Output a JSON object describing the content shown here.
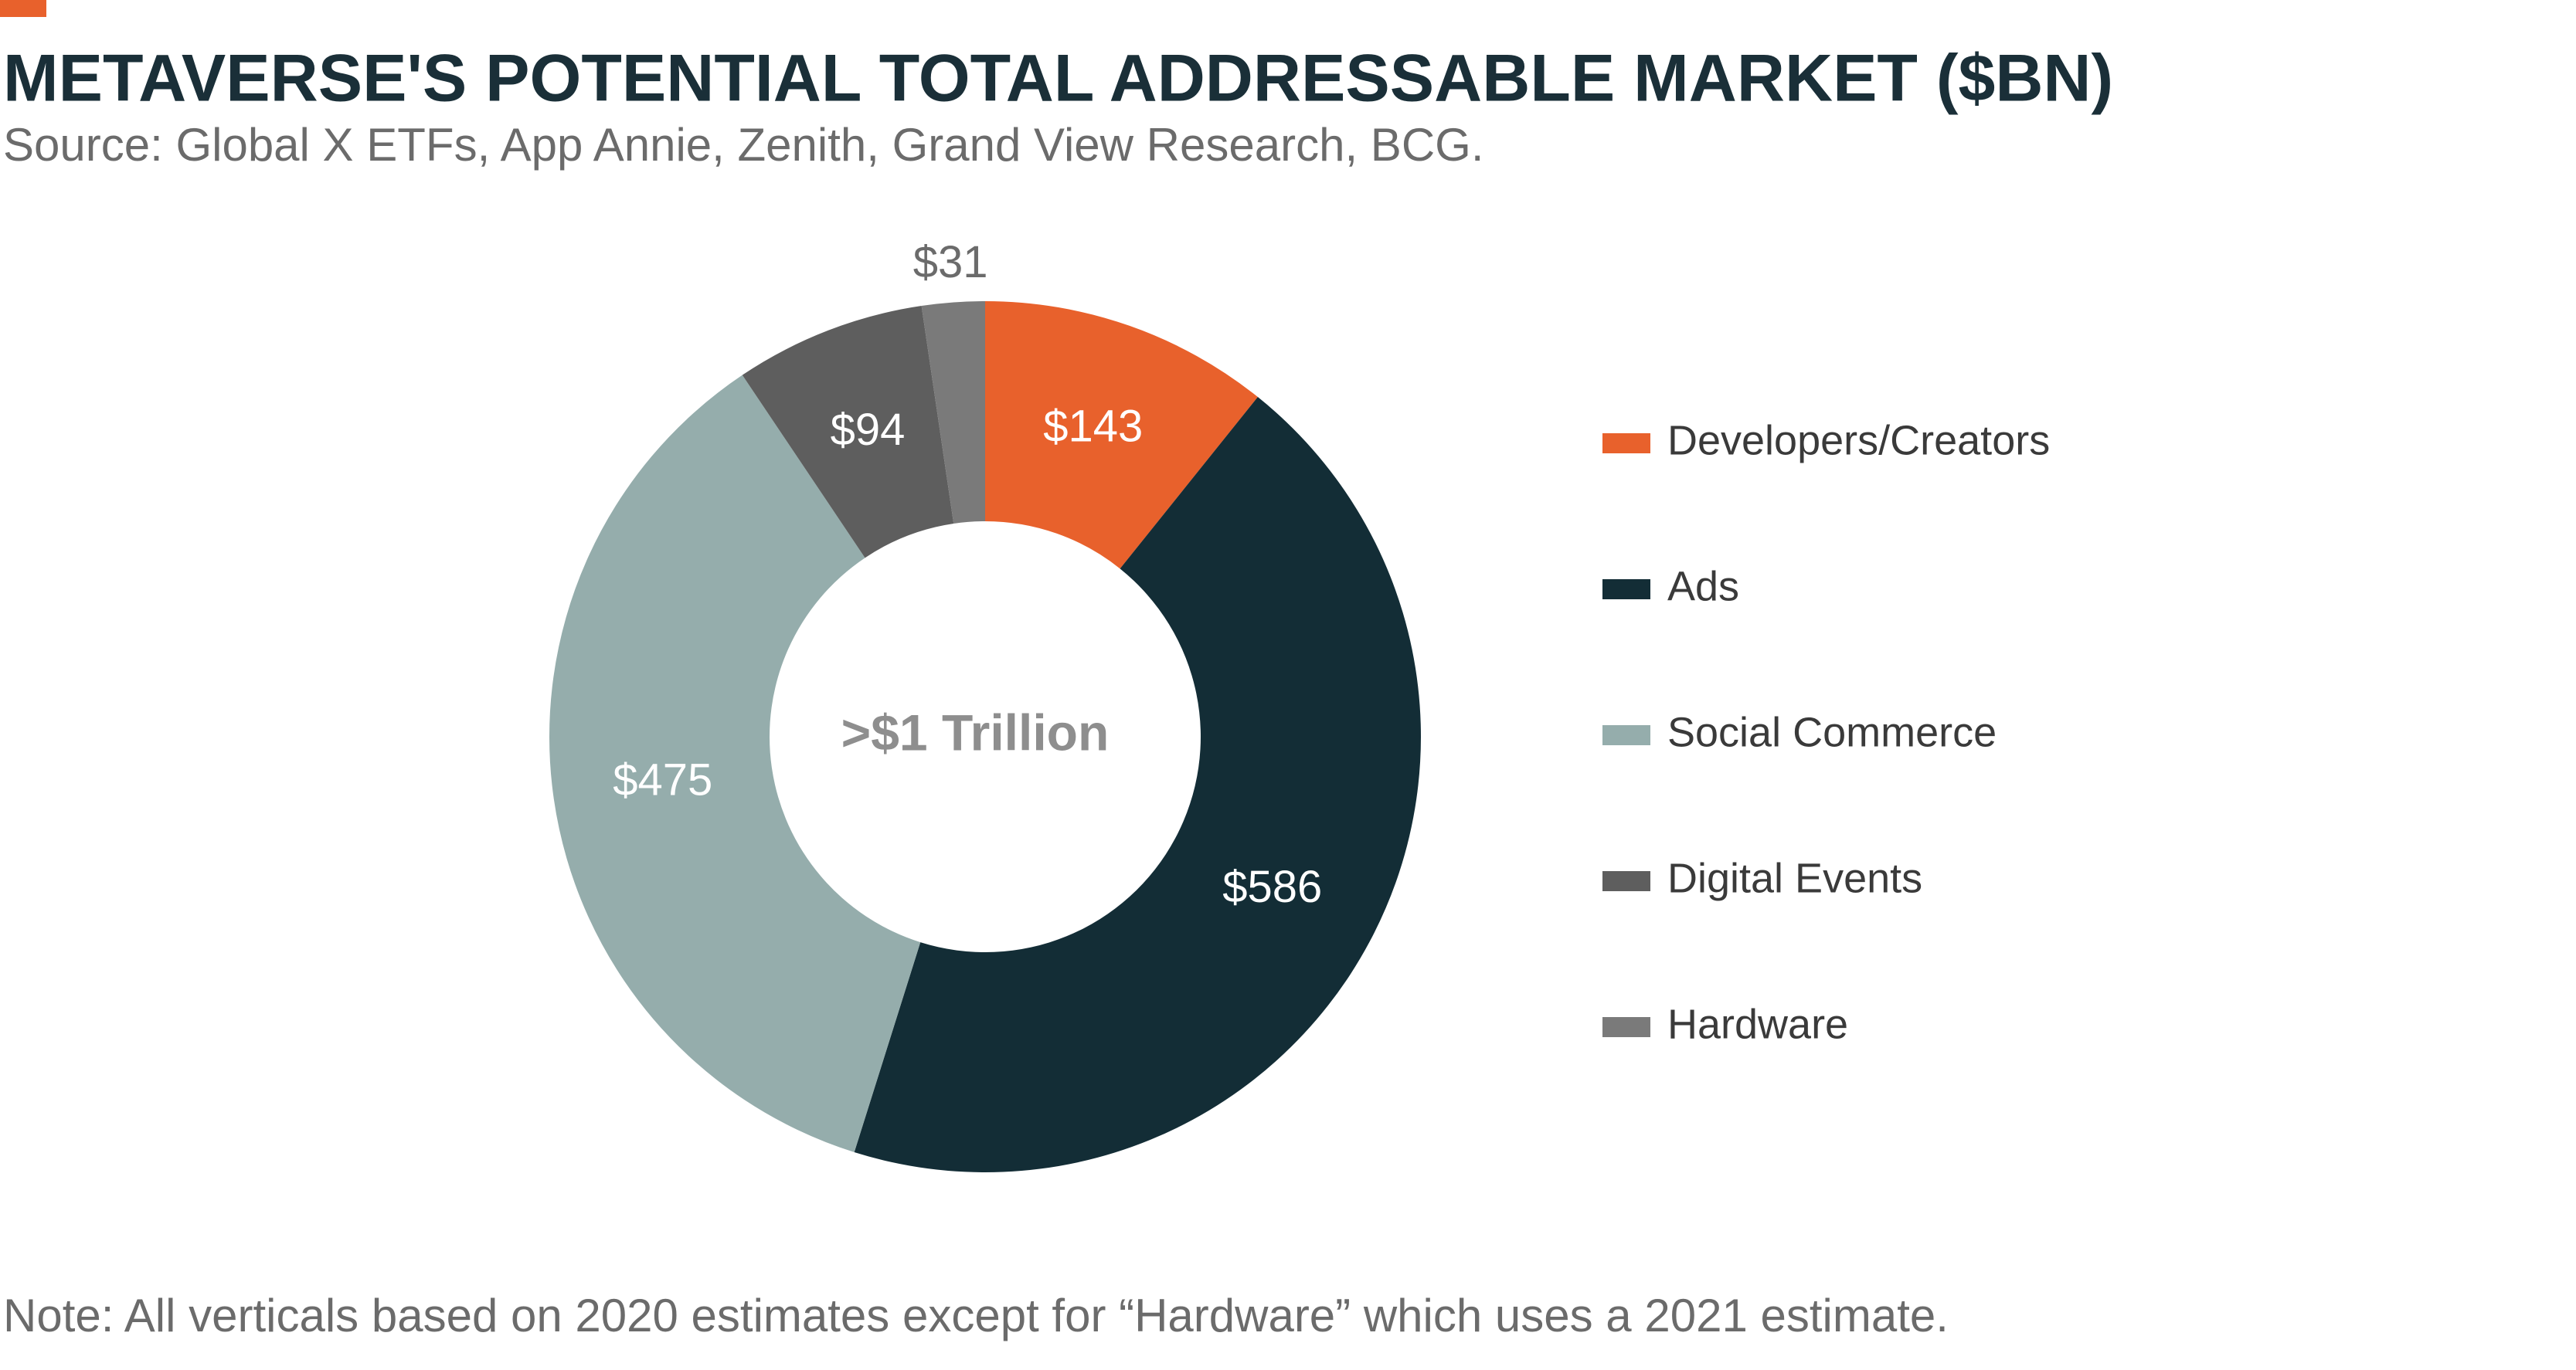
{
  "chart_data": {
    "type": "donut",
    "title": "METAVERSE'S POTENTIAL TOTAL ADDRESSABLE MARKET ($BN)",
    "subtitle": "Source: Global X ETFs, App Annie, Zenith, Grand View Research, BCG.",
    "center_label": ">$1 Trillion",
    "note": "Note: All verticals based on 2020 estimates except for “Hardware” which uses a 2021 estimate.",
    "categories": [
      "Developers/Creators",
      "Ads",
      "Social Commerce",
      "Digital Events",
      "Hardware"
    ],
    "values": [
      143,
      586,
      475,
      94,
      31
    ],
    "value_labels": [
      "$143",
      "$586",
      "$475",
      "$94",
      "$31"
    ],
    "colors": [
      "#e8612c",
      "#132d36",
      "#95adac",
      "#5e5e5e",
      "#7a7a7a"
    ],
    "legend": "right"
  }
}
